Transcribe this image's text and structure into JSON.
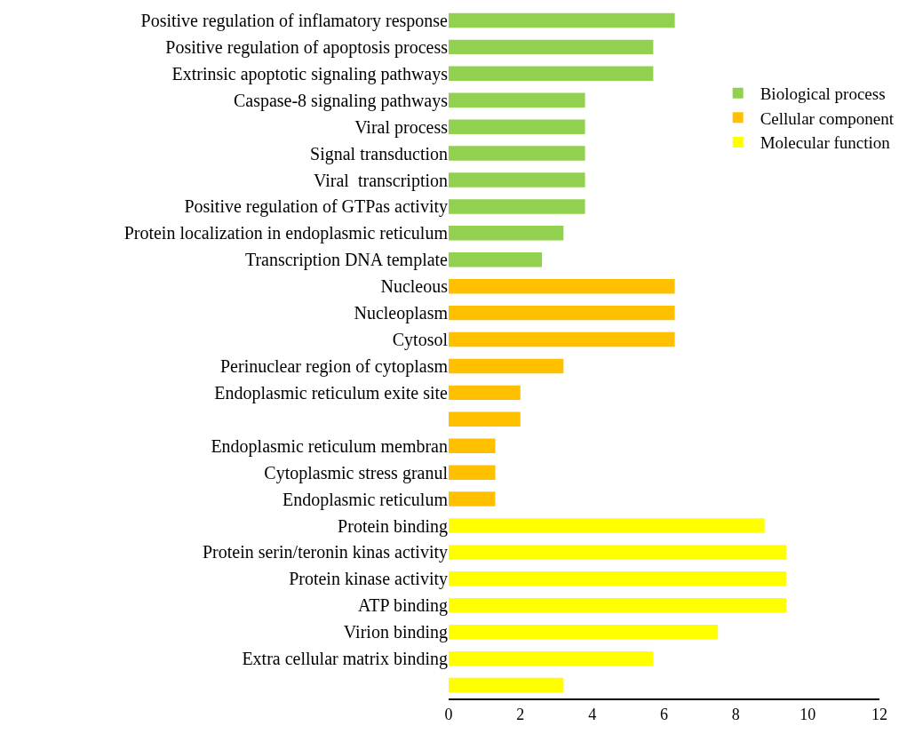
{
  "chart_data": {
    "type": "bar",
    "orientation": "horizontal",
    "categories": [
      "Positive regulation of inflamatory response",
      "Positive regulation of apoptosis process",
      "Extrinsic apoptotic signaling pathways",
      "Caspase-8 signaling pathways",
      "Viral process",
      "Signal transduction",
      "Viral  transcription",
      "Positive regulation of GTPas activity",
      "Protein localization in endoplasmic reticulum",
      "Transcription DNA template",
      "Nucleous",
      "Nucleoplasm",
      "Cytosol",
      "Perinuclear region of cytoplasm",
      "Endoplasmic reticulum exite site",
      null,
      "Endoplasmic reticulum membran",
      "Cytoplasmic stress granul",
      "Endoplasmic reticulum",
      "Protein binding",
      "Protein serin/teronin kinas activity",
      "Protein kinase activity",
      "ATP binding",
      "Virion binding",
      "Extra cellular matrix binding",
      null
    ],
    "series": [
      {
        "name": "Biological process",
        "color": "#92d050",
        "values": [
          6.3,
          5.7,
          5.7,
          3.8,
          3.8,
          3.8,
          3.8,
          3.8,
          3.2,
          2.6,
          null,
          null,
          null,
          null,
          null,
          null,
          null,
          null,
          null,
          null,
          null,
          null,
          null,
          null,
          null,
          null
        ]
      },
      {
        "name": "Cellular component",
        "color": "#ffc000",
        "values": [
          null,
          null,
          null,
          null,
          null,
          null,
          null,
          null,
          null,
          null,
          6.3,
          6.3,
          6.3,
          3.2,
          2.0,
          2.0,
          1.3,
          1.3,
          1.3,
          null,
          null,
          null,
          null,
          null,
          null,
          null
        ]
      },
      {
        "name": "Molecular function",
        "color": "#ffff00",
        "values": [
          null,
          null,
          null,
          null,
          null,
          null,
          null,
          null,
          null,
          null,
          null,
          null,
          null,
          null,
          null,
          null,
          null,
          null,
          null,
          8.8,
          9.4,
          9.4,
          9.4,
          7.5,
          5.7,
          3.2
        ]
      }
    ],
    "xlim": [
      0,
      12
    ],
    "xticks": [
      0,
      2,
      4,
      6,
      8,
      10,
      12
    ],
    "grid": false,
    "legend": "top right"
  }
}
